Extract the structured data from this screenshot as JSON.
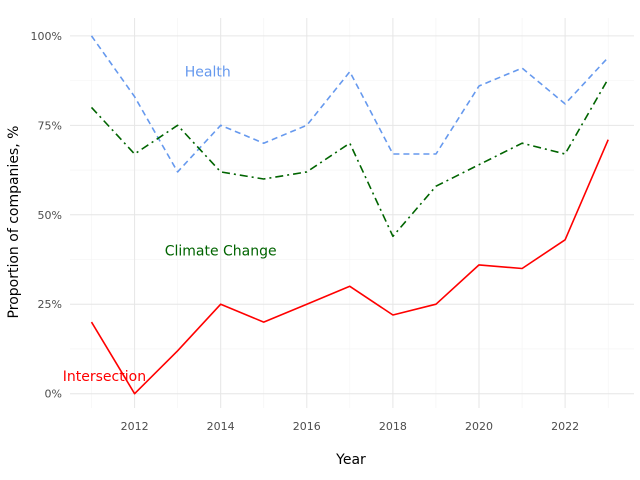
{
  "chart_data": {
    "type": "line",
    "xlabel": "Year",
    "ylabel": "Proportion of companies, %",
    "xlim": [
      2010.5,
      2023.6
    ],
    "ylim": [
      -0.04,
      1.05
    ],
    "x_ticks": [
      2012,
      2014,
      2016,
      2018,
      2020,
      2022
    ],
    "x_tick_labels": [
      "2012",
      "2014",
      "2016",
      "2018",
      "2020",
      "2022"
    ],
    "y_ticks": [
      0,
      0.25,
      0.5,
      0.75,
      1.0
    ],
    "y_tick_labels": [
      "0%",
      "25%",
      "50%",
      "75%",
      "100%"
    ],
    "grid": true,
    "legend": "none",
    "x": [
      2011,
      2012,
      2013,
      2014,
      2015,
      2016,
      2017,
      2018,
      2019,
      2020,
      2021,
      2022,
      2023
    ],
    "series": [
      {
        "name": "Health",
        "color": "#6699ee",
        "line_style": "dashed",
        "label_at": [
          2013.7,
          0.9
        ],
        "values": [
          1.0,
          0.83,
          0.62,
          0.75,
          0.7,
          0.75,
          0.9,
          0.67,
          0.67,
          0.86,
          0.91,
          0.81,
          0.94
        ]
      },
      {
        "name": "Climate Change",
        "color": "#006400",
        "line_style": "dashdot",
        "label_at": [
          2014.0,
          0.4
        ],
        "values": [
          0.8,
          0.67,
          0.75,
          0.62,
          0.6,
          0.62,
          0.7,
          0.44,
          0.58,
          0.64,
          0.7,
          0.67,
          0.88
        ]
      },
      {
        "name": "Intersection",
        "color": "#ff0000",
        "line_style": "solid",
        "label_at": [
          2011.3,
          0.05
        ],
        "values": [
          0.2,
          0.0,
          0.12,
          0.25,
          0.2,
          0.25,
          0.3,
          0.22,
          0.25,
          0.36,
          0.35,
          0.43,
          0.71
        ]
      }
    ]
  }
}
